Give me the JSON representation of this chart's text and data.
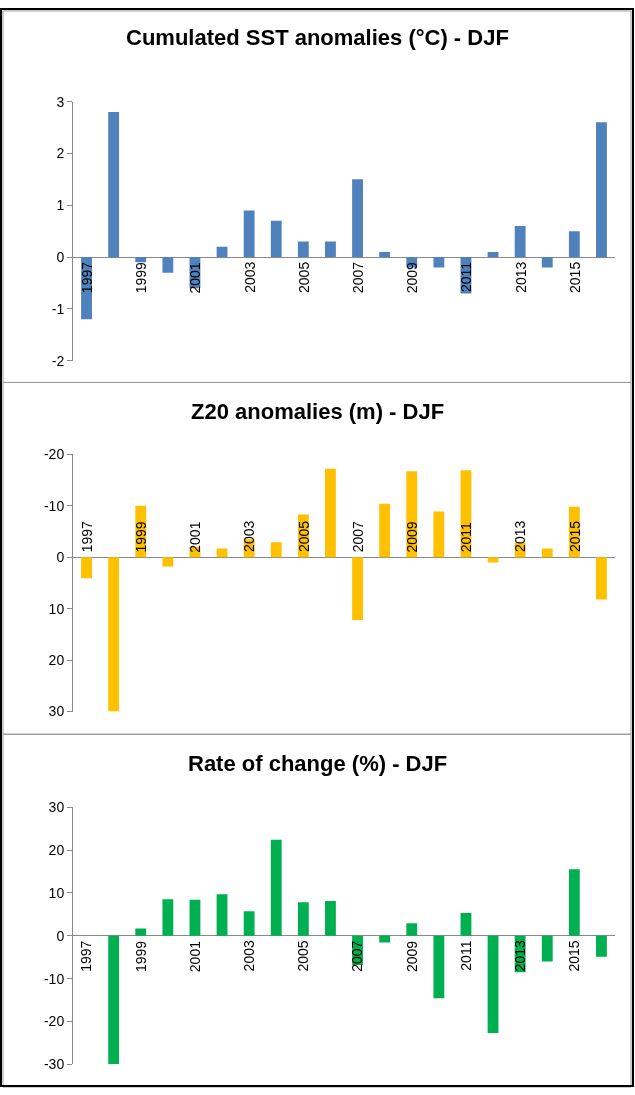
{
  "chart_data": [
    {
      "type": "bar",
      "title": "Cumulated SST anomalies (°C) - DJF",
      "categories": [
        "1997",
        null,
        "1999",
        null,
        "2001",
        null,
        "2003",
        null,
        "2005",
        null,
        "2007",
        null,
        "2009",
        null,
        "2011",
        null,
        "2013",
        null,
        "2015",
        null
      ],
      "values": [
        -1.2,
        2.8,
        -0.1,
        -0.3,
        -0.6,
        0.2,
        0.9,
        0.7,
        0.3,
        0.3,
        1.5,
        0.1,
        -0.2,
        -0.2,
        -0.7,
        0.1,
        0.6,
        -0.2,
        0.5,
        2.6
      ],
      "color": "#4f81bd",
      "ylim": [
        -2,
        3
      ],
      "yticks": [
        -2,
        -1,
        0,
        1,
        2,
        3
      ]
    },
    {
      "type": "bar",
      "title": "Z20 anomalies (m) - DJF",
      "categories": [
        "1997",
        null,
        "1999",
        null,
        "2001",
        null,
        "2003",
        null,
        "2005",
        null,
        "2007",
        null,
        "2009",
        null,
        "2011",
        null,
        "2013",
        null,
        "2015",
        null
      ],
      "values": [
        4.1,
        30,
        -10,
        1.8,
        -2,
        -1.7,
        -3.5,
        -2.9,
        -8.3,
        -17.2,
        12.2,
        -10.4,
        -16.7,
        -8.9,
        -16.9,
        1,
        -2.8,
        -1.7,
        -9.8,
        8.2
      ],
      "color": "#ffc000",
      "ylim": [
        30,
        -20
      ],
      "yticks": [
        30,
        20,
        10,
        0,
        -10,
        -20
      ]
    },
    {
      "type": "bar",
      "title": "Rate of change (%) - DJF",
      "categories": [
        "1997",
        null,
        "1999",
        null,
        "2001",
        null,
        "2003",
        null,
        "2005",
        null,
        "2007",
        null,
        "2009",
        null,
        "2011",
        null,
        "2013",
        null,
        "2015",
        null
      ],
      "values": [
        0,
        -30,
        1.7,
        8.5,
        8.4,
        9.7,
        5.7,
        22.4,
        7.8,
        8.1,
        -6.8,
        -1.6,
        2.9,
        -14.6,
        5.3,
        -22.7,
        -8.5,
        -6,
        15.5,
        -4.9
      ],
      "color": "#00b050",
      "ylim": [
        -30,
        30
      ],
      "yticks": [
        -30,
        -20,
        -10,
        0,
        10,
        20,
        30
      ]
    }
  ]
}
